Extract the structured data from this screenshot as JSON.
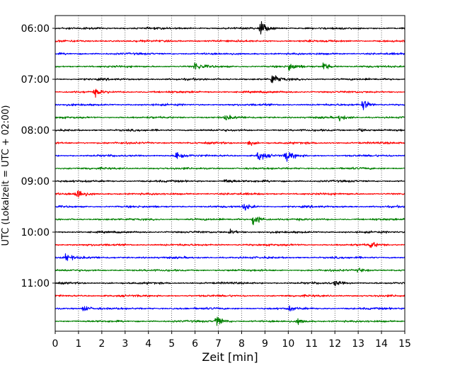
{
  "chart_data": {
    "type": "line",
    "xlabel": "Zeit  [min]",
    "ylabel": "UTC (Lokalzeit = UTC + 02:00)",
    "xlim": [
      0,
      15
    ],
    "x_ticks": [
      "0",
      "1",
      "2",
      "3",
      "4",
      "5",
      "6",
      "7",
      "8",
      "9",
      "10",
      "11",
      "12",
      "13",
      "14",
      "15"
    ],
    "y_ticks": [
      {
        "label": "06:00",
        "minute": 0
      },
      {
        "label": "07:00",
        "minute": 60
      },
      {
        "label": "08:00",
        "minute": 120
      },
      {
        "label": "09:00",
        "minute": 180
      },
      {
        "label": "10:00",
        "minute": 240
      },
      {
        "label": "11:00",
        "minute": 300
      }
    ],
    "trace_interval_min": 15,
    "trace_count": 24,
    "trace_colors": [
      "#000000",
      "#ff0000",
      "#0000ff",
      "#008000"
    ],
    "grid_x": true,
    "events": [
      {
        "trace": 0,
        "x": 8.8,
        "amp": 9
      },
      {
        "trace": 3,
        "x": 6.0,
        "amp": 6
      },
      {
        "trace": 3,
        "x": 10.0,
        "amp": 6
      },
      {
        "trace": 3,
        "x": 11.5,
        "amp": 5
      },
      {
        "trace": 4,
        "x": 9.3,
        "amp": 7
      },
      {
        "trace": 5,
        "x": 1.7,
        "amp": 4
      },
      {
        "trace": 6,
        "x": 13.2,
        "amp": 7
      },
      {
        "trace": 7,
        "x": 7.3,
        "amp": 3
      },
      {
        "trace": 7,
        "x": 12.2,
        "amp": 4
      },
      {
        "trace": 8,
        "x": 13.0,
        "amp": 3
      },
      {
        "trace": 9,
        "x": 8.3,
        "amp": 3
      },
      {
        "trace": 10,
        "x": 5.2,
        "amp": 7
      },
      {
        "trace": 10,
        "x": 8.7,
        "amp": 8
      },
      {
        "trace": 10,
        "x": 9.9,
        "amp": 8
      },
      {
        "trace": 12,
        "x": 7.3,
        "amp": 4
      },
      {
        "trace": 13,
        "x": 0.9,
        "amp": 9
      },
      {
        "trace": 14,
        "x": 8.1,
        "amp": 5
      },
      {
        "trace": 15,
        "x": 8.5,
        "amp": 10
      },
      {
        "trace": 16,
        "x": 7.5,
        "amp": 3
      },
      {
        "trace": 17,
        "x": 13.5,
        "amp": 4
      },
      {
        "trace": 18,
        "x": 0.4,
        "amp": 6
      },
      {
        "trace": 19,
        "x": 13.0,
        "amp": 3
      },
      {
        "trace": 20,
        "x": 12.0,
        "amp": 3
      },
      {
        "trace": 22,
        "x": 1.2,
        "amp": 4
      },
      {
        "trace": 22,
        "x": 10.0,
        "amp": 3
      },
      {
        "trace": 23,
        "x": 6.9,
        "amp": 8
      },
      {
        "trace": 23,
        "x": 10.4,
        "amp": 4
      }
    ]
  }
}
